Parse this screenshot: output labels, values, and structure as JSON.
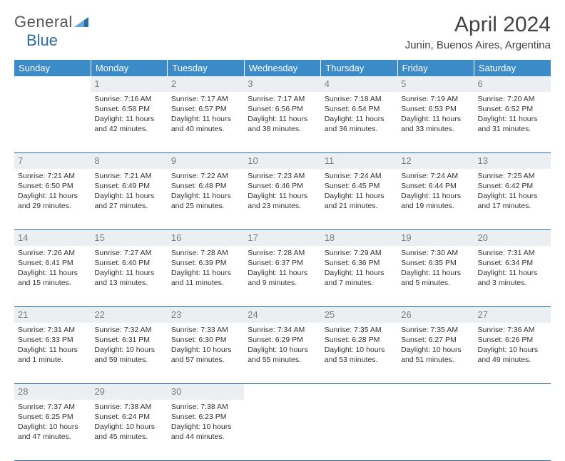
{
  "brand": {
    "part1": "General",
    "part2": "Blue"
  },
  "title": "April 2024",
  "location": "Junin, Buenos Aires, Argentina",
  "colors": {
    "header_bg": "#3b8bc9",
    "header_text": "#ffffff",
    "daynum_bg": "#eceff1",
    "daynum_text": "#7a7f83",
    "cell_border": "#2b6ca3",
    "body_text": "#333333",
    "logo_blue": "#2b6ca3"
  },
  "days_of_week": [
    "Sunday",
    "Monday",
    "Tuesday",
    "Wednesday",
    "Thursday",
    "Friday",
    "Saturday"
  ],
  "weeks": [
    {
      "nums": [
        "",
        "1",
        "2",
        "3",
        "4",
        "5",
        "6"
      ],
      "cells": [
        null,
        {
          "sunrise": "Sunrise: 7:16 AM",
          "sunset": "Sunset: 6:58 PM",
          "day1": "Daylight: 11 hours",
          "day2": "and 42 minutes."
        },
        {
          "sunrise": "Sunrise: 7:17 AM",
          "sunset": "Sunset: 6:57 PM",
          "day1": "Daylight: 11 hours",
          "day2": "and 40 minutes."
        },
        {
          "sunrise": "Sunrise: 7:17 AM",
          "sunset": "Sunset: 6:56 PM",
          "day1": "Daylight: 11 hours",
          "day2": "and 38 minutes."
        },
        {
          "sunrise": "Sunrise: 7:18 AM",
          "sunset": "Sunset: 6:54 PM",
          "day1": "Daylight: 11 hours",
          "day2": "and 36 minutes."
        },
        {
          "sunrise": "Sunrise: 7:19 AM",
          "sunset": "Sunset: 6:53 PM",
          "day1": "Daylight: 11 hours",
          "day2": "and 33 minutes."
        },
        {
          "sunrise": "Sunrise: 7:20 AM",
          "sunset": "Sunset: 6:52 PM",
          "day1": "Daylight: 11 hours",
          "day2": "and 31 minutes."
        }
      ]
    },
    {
      "nums": [
        "7",
        "8",
        "9",
        "10",
        "11",
        "12",
        "13"
      ],
      "cells": [
        {
          "sunrise": "Sunrise: 7:21 AM",
          "sunset": "Sunset: 6:50 PM",
          "day1": "Daylight: 11 hours",
          "day2": "and 29 minutes."
        },
        {
          "sunrise": "Sunrise: 7:21 AM",
          "sunset": "Sunset: 6:49 PM",
          "day1": "Daylight: 11 hours",
          "day2": "and 27 minutes."
        },
        {
          "sunrise": "Sunrise: 7:22 AM",
          "sunset": "Sunset: 6:48 PM",
          "day1": "Daylight: 11 hours",
          "day2": "and 25 minutes."
        },
        {
          "sunrise": "Sunrise: 7:23 AM",
          "sunset": "Sunset: 6:46 PM",
          "day1": "Daylight: 11 hours",
          "day2": "and 23 minutes."
        },
        {
          "sunrise": "Sunrise: 7:24 AM",
          "sunset": "Sunset: 6:45 PM",
          "day1": "Daylight: 11 hours",
          "day2": "and 21 minutes."
        },
        {
          "sunrise": "Sunrise: 7:24 AM",
          "sunset": "Sunset: 6:44 PM",
          "day1": "Daylight: 11 hours",
          "day2": "and 19 minutes."
        },
        {
          "sunrise": "Sunrise: 7:25 AM",
          "sunset": "Sunset: 6:42 PM",
          "day1": "Daylight: 11 hours",
          "day2": "and 17 minutes."
        }
      ]
    },
    {
      "nums": [
        "14",
        "15",
        "16",
        "17",
        "18",
        "19",
        "20"
      ],
      "cells": [
        {
          "sunrise": "Sunrise: 7:26 AM",
          "sunset": "Sunset: 6:41 PM",
          "day1": "Daylight: 11 hours",
          "day2": "and 15 minutes."
        },
        {
          "sunrise": "Sunrise: 7:27 AM",
          "sunset": "Sunset: 6:40 PM",
          "day1": "Daylight: 11 hours",
          "day2": "and 13 minutes."
        },
        {
          "sunrise": "Sunrise: 7:28 AM",
          "sunset": "Sunset: 6:39 PM",
          "day1": "Daylight: 11 hours",
          "day2": "and 11 minutes."
        },
        {
          "sunrise": "Sunrise: 7:28 AM",
          "sunset": "Sunset: 6:37 PM",
          "day1": "Daylight: 11 hours",
          "day2": "and 9 minutes."
        },
        {
          "sunrise": "Sunrise: 7:29 AM",
          "sunset": "Sunset: 6:36 PM",
          "day1": "Daylight: 11 hours",
          "day2": "and 7 minutes."
        },
        {
          "sunrise": "Sunrise: 7:30 AM",
          "sunset": "Sunset: 6:35 PM",
          "day1": "Daylight: 11 hours",
          "day2": "and 5 minutes."
        },
        {
          "sunrise": "Sunrise: 7:31 AM",
          "sunset": "Sunset: 6:34 PM",
          "day1": "Daylight: 11 hours",
          "day2": "and 3 minutes."
        }
      ]
    },
    {
      "nums": [
        "21",
        "22",
        "23",
        "24",
        "25",
        "26",
        "27"
      ],
      "cells": [
        {
          "sunrise": "Sunrise: 7:31 AM",
          "sunset": "Sunset: 6:33 PM",
          "day1": "Daylight: 11 hours",
          "day2": "and 1 minute."
        },
        {
          "sunrise": "Sunrise: 7:32 AM",
          "sunset": "Sunset: 6:31 PM",
          "day1": "Daylight: 10 hours",
          "day2": "and 59 minutes."
        },
        {
          "sunrise": "Sunrise: 7:33 AM",
          "sunset": "Sunset: 6:30 PM",
          "day1": "Daylight: 10 hours",
          "day2": "and 57 minutes."
        },
        {
          "sunrise": "Sunrise: 7:34 AM",
          "sunset": "Sunset: 6:29 PM",
          "day1": "Daylight: 10 hours",
          "day2": "and 55 minutes."
        },
        {
          "sunrise": "Sunrise: 7:35 AM",
          "sunset": "Sunset: 6:28 PM",
          "day1": "Daylight: 10 hours",
          "day2": "and 53 minutes."
        },
        {
          "sunrise": "Sunrise: 7:35 AM",
          "sunset": "Sunset: 6:27 PM",
          "day1": "Daylight: 10 hours",
          "day2": "and 51 minutes."
        },
        {
          "sunrise": "Sunrise: 7:36 AM",
          "sunset": "Sunset: 6:26 PM",
          "day1": "Daylight: 10 hours",
          "day2": "and 49 minutes."
        }
      ]
    },
    {
      "nums": [
        "28",
        "29",
        "30",
        "",
        "",
        "",
        ""
      ],
      "cells": [
        {
          "sunrise": "Sunrise: 7:37 AM",
          "sunset": "Sunset: 6:25 PM",
          "day1": "Daylight: 10 hours",
          "day2": "and 47 minutes."
        },
        {
          "sunrise": "Sunrise: 7:38 AM",
          "sunset": "Sunset: 6:24 PM",
          "day1": "Daylight: 10 hours",
          "day2": "and 45 minutes."
        },
        {
          "sunrise": "Sunrise: 7:38 AM",
          "sunset": "Sunset: 6:23 PM",
          "day1": "Daylight: 10 hours",
          "day2": "and 44 minutes."
        },
        null,
        null,
        null,
        null
      ]
    }
  ]
}
